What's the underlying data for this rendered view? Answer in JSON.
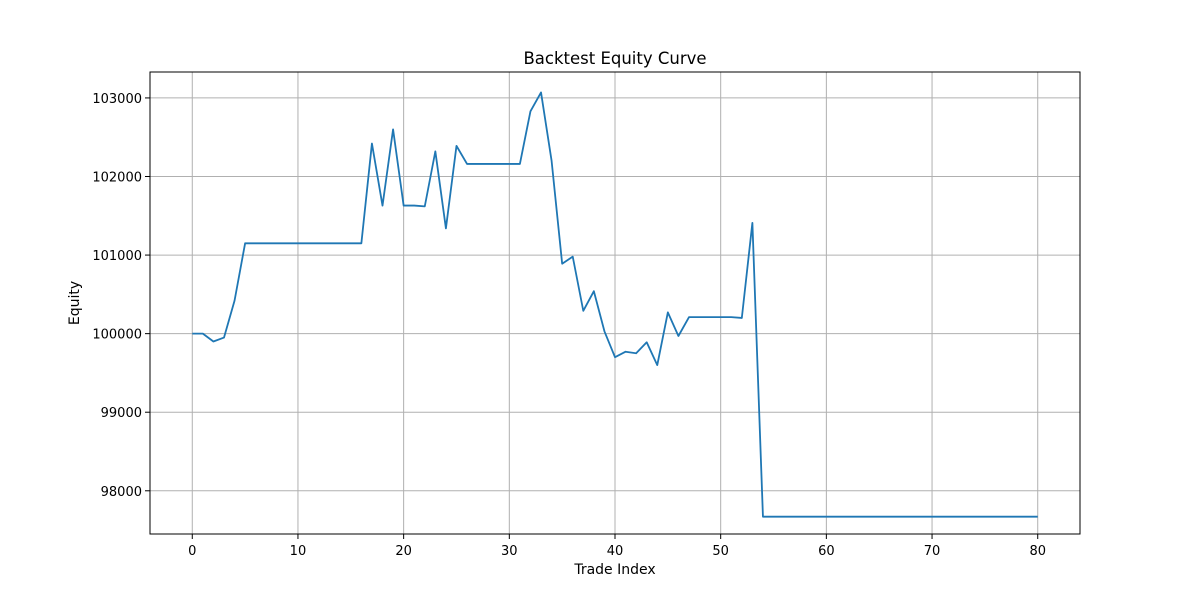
{
  "chart_data": {
    "type": "line",
    "title": "Backtest Equity Curve",
    "xlabel": "Trade Index",
    "ylabel": "Equity",
    "xlim": [
      -4,
      84
    ],
    "ylim": [
      97450,
      103330
    ],
    "xticks": [
      0,
      10,
      20,
      30,
      40,
      50,
      60,
      70,
      80
    ],
    "yticks": [
      98000,
      99000,
      100000,
      101000,
      102000,
      103000
    ],
    "grid": true,
    "legend": "none",
    "line_color": "#1f77b4",
    "grid_color": "#b0b0b0",
    "series": [
      {
        "x": [
          0,
          1,
          2,
          3,
          4,
          5,
          6,
          7,
          8,
          9,
          10,
          11,
          12,
          13,
          14,
          15,
          16,
          17,
          18,
          19,
          20,
          21,
          22,
          23,
          24,
          25,
          26,
          27,
          28,
          29,
          30,
          31,
          32,
          33,
          34,
          35,
          36,
          37,
          38,
          39,
          40,
          41,
          42,
          43,
          44,
          45,
          46,
          47,
          48,
          49,
          50,
          51,
          52,
          53,
          54,
          55,
          56,
          57,
          58,
          59,
          60,
          61,
          62,
          63,
          64,
          65,
          66,
          67,
          68,
          69,
          70,
          71,
          72,
          73,
          74,
          75,
          76,
          77,
          78,
          79,
          80
        ],
        "values": [
          100000,
          100000,
          99900,
          99950,
          100420,
          101150,
          101150,
          101150,
          101150,
          101150,
          101150,
          101150,
          101150,
          101150,
          101150,
          101150,
          101150,
          102420,
          101630,
          102600,
          101630,
          101630,
          101620,
          102320,
          101340,
          102390,
          102160,
          102160,
          102160,
          102160,
          102160,
          102160,
          102830,
          103070,
          102200,
          100890,
          100980,
          100290,
          100540,
          100030,
          99700,
          99770,
          99750,
          99890,
          99600,
          100270,
          99970,
          100210,
          100210,
          100210,
          100210,
          100210,
          100200,
          101410,
          97670,
          97670,
          97670,
          97670,
          97670,
          97670,
          97670,
          97670,
          97670,
          97670,
          97670,
          97670,
          97670,
          97670,
          97670,
          97670,
          97670,
          97670,
          97670,
          97670,
          97670,
          97670,
          97670,
          97670,
          97670,
          97670,
          97670
        ]
      }
    ]
  }
}
